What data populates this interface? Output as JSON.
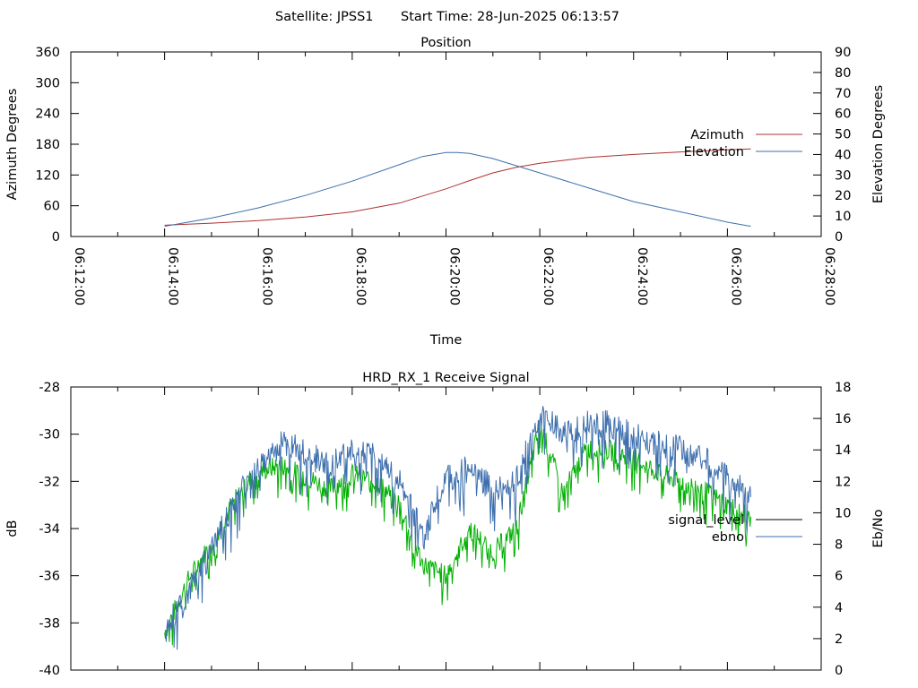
{
  "header": {
    "satellite": "Satellite: JPSS1",
    "start_time": "Start Time: 28-Jun-2025 06:13:57"
  },
  "colors": {
    "azimuth": "#b03030",
    "elevation": "#3d6fae",
    "signal_level": "#00b000",
    "ebno": "#3d6fae",
    "legend_signal_level": "#000000"
  },
  "chart_data": [
    {
      "type": "line",
      "title": "Position",
      "xlabel": "Time",
      "ylabel": "Azimuth Degrees",
      "y2label": "Elevation Degrees",
      "x_ticks": [
        "06:12:00",
        "06:14:00",
        "06:16:00",
        "06:18:00",
        "06:20:00",
        "06:22:00",
        "06:24:00",
        "06:26:00",
        "06:28:00"
      ],
      "xlim": [
        "06:12:00",
        "06:28:00"
      ],
      "ylim": [
        0,
        360
      ],
      "y_ticks": [
        0,
        60,
        120,
        180,
        240,
        300,
        360
      ],
      "y2lim": [
        0,
        90
      ],
      "y2_ticks": [
        0,
        10,
        20,
        30,
        40,
        50,
        60,
        70,
        80,
        90
      ],
      "legend_position": "right",
      "series": [
        {
          "name": "Azimuth",
          "axis": "y",
          "x": [
            "06:14:00",
            "06:15:00",
            "06:16:00",
            "06:17:00",
            "06:18:00",
            "06:19:00",
            "06:20:00",
            "06:20:30",
            "06:21:00",
            "06:21:30",
            "06:22:00",
            "06:23:00",
            "06:24:00",
            "06:25:00",
            "06:26:00",
            "06:26:30"
          ],
          "values": [
            22,
            26,
            31,
            38,
            48,
            65,
            93,
            109,
            124,
            135,
            143,
            154,
            160,
            165,
            169,
            171
          ]
        },
        {
          "name": "Elevation",
          "axis": "y2",
          "x": [
            "06:14:00",
            "06:15:00",
            "06:16:00",
            "06:17:00",
            "06:18:00",
            "06:19:00",
            "06:19:30",
            "06:20:00",
            "06:20:15",
            "06:20:30",
            "06:21:00",
            "06:22:00",
            "06:23:00",
            "06:24:00",
            "06:25:00",
            "06:26:00",
            "06:26:30"
          ],
          "values": [
            5,
            9,
            14,
            20,
            27,
            35,
            39,
            41,
            41,
            40.5,
            38,
            31,
            24,
            17,
            12,
            7,
            5
          ]
        }
      ]
    },
    {
      "type": "line",
      "title": "HRD_RX_1 Receive Signal",
      "ylabel": "dB",
      "y2label": "Eb/No",
      "ylim": [
        -40,
        -28
      ],
      "y_ticks": [
        -40,
        -38,
        -36,
        -34,
        -32,
        -30,
        -28
      ],
      "y2lim": [
        0,
        18
      ],
      "y2_ticks": [
        0,
        2,
        4,
        6,
        8,
        10,
        12,
        14,
        16,
        18
      ],
      "xlim": [
        "06:12:00",
        "06:28:00"
      ],
      "legend_position": "right",
      "series": [
        {
          "name": "signal_level",
          "axis": "y",
          "x": [
            "06:14:00",
            "06:14:30",
            "06:15:00",
            "06:15:30",
            "06:16:00",
            "06:16:30",
            "06:17:00",
            "06:17:30",
            "06:18:00",
            "06:18:30",
            "06:19:00",
            "06:19:30",
            "06:20:00",
            "06:20:30",
            "06:21:00",
            "06:21:30",
            "06:22:00",
            "06:22:30",
            "06:23:00",
            "06:23:30",
            "06:24:00",
            "06:24:30",
            "06:25:00",
            "06:25:30",
            "06:26:00",
            "06:26:30"
          ],
          "values": [
            -38.4,
            -36.2,
            -34.6,
            -32.8,
            -31.6,
            -31.3,
            -31.8,
            -32.3,
            -31.7,
            -32.0,
            -32.9,
            -35.5,
            -36.0,
            -34.0,
            -35.0,
            -34.0,
            -29.6,
            -32.5,
            -30.6,
            -30.7,
            -31.0,
            -31.6,
            -32.0,
            -32.4,
            -33.0,
            -33.5
          ]
        },
        {
          "name": "ebno",
          "axis": "y2",
          "x": [
            "06:14:00",
            "06:14:30",
            "06:15:00",
            "06:15:30",
            "06:16:00",
            "06:16:30",
            "06:17:00",
            "06:17:30",
            "06:18:00",
            "06:18:30",
            "06:19:00",
            "06:19:30",
            "06:20:00",
            "06:20:30",
            "06:21:00",
            "06:21:30",
            "06:22:00",
            "06:22:30",
            "06:23:00",
            "06:23:30",
            "06:24:00",
            "06:24:30",
            "06:25:00",
            "06:25:30",
            "06:26:00",
            "06:26:30"
          ],
          "values": [
            2.5,
            5.0,
            7.5,
            10.8,
            13.0,
            14.5,
            13.8,
            13.0,
            13.8,
            13.5,
            12.0,
            8.6,
            12.2,
            12.8,
            11.5,
            12.0,
            16.3,
            15.0,
            15.8,
            15.6,
            14.9,
            14.5,
            14.0,
            13.4,
            12.2,
            11.0
          ]
        }
      ]
    }
  ]
}
